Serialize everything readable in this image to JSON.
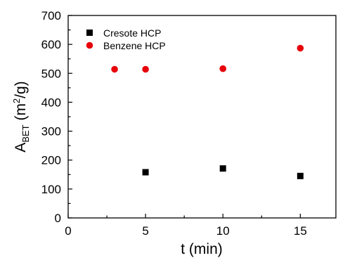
{
  "chart_data": {
    "type": "scatter",
    "xlabel": "t (min)",
    "ylabel": {
      "base": "A",
      "subscript": "BET",
      "paren_open": " (m",
      "superscript": "2",
      "paren_close": "/g)"
    },
    "xlim": [
      0,
      17.3
    ],
    "ylim": [
      0,
      700
    ],
    "xticks": [
      "0",
      "5",
      "10",
      "15"
    ],
    "yticks": [
      "0",
      "100",
      "200",
      "300",
      "400",
      "500",
      "600",
      "700"
    ],
    "grid": false,
    "legend_position": "top-left",
    "series": [
      {
        "name": "Cresote HCP",
        "marker": "square",
        "color": "#000000",
        "points": [
          {
            "x": 5,
            "y": 158
          },
          {
            "x": 10,
            "y": 171
          },
          {
            "x": 15,
            "y": 145
          }
        ]
      },
      {
        "name": "Benzene HCP",
        "marker": "circle",
        "color": "#e8000b",
        "points": [
          {
            "x": 3,
            "y": 514
          },
          {
            "x": 5,
            "y": 514
          },
          {
            "x": 10,
            "y": 516
          },
          {
            "x": 15,
            "y": 587
          }
        ]
      }
    ]
  }
}
